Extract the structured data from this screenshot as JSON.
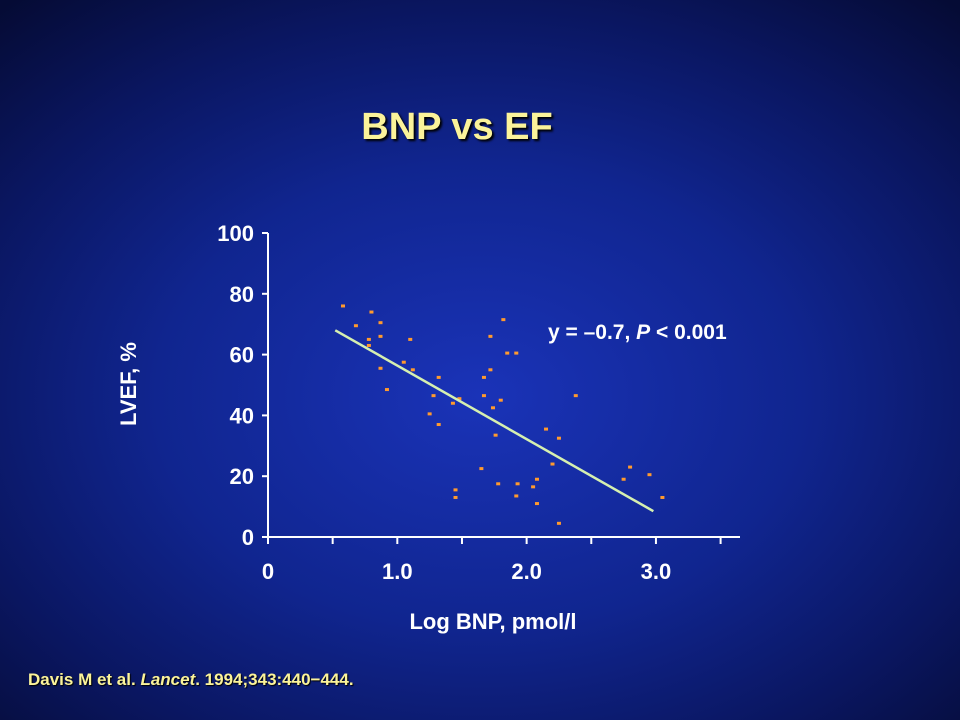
{
  "slide": {
    "title": "BNP vs EF"
  },
  "citation": {
    "authors": "Davis M et al. ",
    "journal": "Lancet",
    "details": ". 1994;343:440−444."
  },
  "colors": {
    "title_text": "#fbf39a",
    "axis": "#ffffff",
    "points": "#ff9a2e",
    "regression_line": "#d6f0b0"
  },
  "chart_data": {
    "type": "scatter",
    "title": "",
    "xlabel": "Log BNP, pmol/l",
    "ylabel": "LVEF, %",
    "xlim": [
      0,
      3.65
    ],
    "ylim": [
      0,
      100
    ],
    "x_ticks": [
      0,
      1.0,
      2.0,
      3.0
    ],
    "x_tick_labels": [
      "0",
      "1.0",
      "2.0",
      "3.0"
    ],
    "x_minor_ticks": [
      0.5,
      1.5,
      2.5,
      3.5
    ],
    "y_ticks": [
      0,
      20,
      40,
      60,
      80,
      100
    ],
    "y_tick_labels": [
      "0",
      "20",
      "40",
      "60",
      "80",
      "100"
    ],
    "grid": false,
    "annotation": {
      "prefix": "y = –0.7, ",
      "p_symbol": "P",
      "suffix": " < 0.001"
    },
    "regression": {
      "x": [
        0.52,
        2.98
      ],
      "y": [
        68,
        8.5
      ]
    },
    "series": [
      {
        "points": [
          [
            0.58,
            76
          ],
          [
            0.68,
            69.5
          ],
          [
            0.78,
            65
          ],
          [
            0.78,
            63
          ],
          [
            0.8,
            74
          ],
          [
            0.87,
            70.5
          ],
          [
            0.87,
            66
          ],
          [
            0.87,
            55.5
          ],
          [
            0.92,
            48.5
          ],
          [
            1.05,
            57.5
          ],
          [
            1.1,
            65
          ],
          [
            1.12,
            55
          ],
          [
            1.25,
            40.5
          ],
          [
            1.28,
            46.5
          ],
          [
            1.32,
            37
          ],
          [
            1.32,
            52.5
          ],
          [
            1.43,
            44
          ],
          [
            1.45,
            15.5
          ],
          [
            1.45,
            13
          ],
          [
            1.48,
            45.5
          ],
          [
            1.65,
            22.5
          ],
          [
            1.67,
            52.5
          ],
          [
            1.67,
            46.5
          ],
          [
            1.72,
            55
          ],
          [
            1.72,
            66
          ],
          [
            1.74,
            42.5
          ],
          [
            1.76,
            33.5
          ],
          [
            1.78,
            17.5
          ],
          [
            1.8,
            45
          ],
          [
            1.82,
            71.5
          ],
          [
            1.85,
            60.5
          ],
          [
            1.92,
            60.5
          ],
          [
            1.92,
            13.5
          ],
          [
            1.93,
            17.5
          ],
          [
            2.05,
            16.5
          ],
          [
            2.08,
            19
          ],
          [
            2.08,
            11
          ],
          [
            2.15,
            35.5
          ],
          [
            2.2,
            24
          ],
          [
            2.25,
            32.5
          ],
          [
            2.25,
            4.5
          ],
          [
            2.38,
            46.5
          ],
          [
            2.75,
            19
          ],
          [
            2.8,
            23
          ],
          [
            2.95,
            20.5
          ],
          [
            3.05,
            13
          ]
        ]
      }
    ]
  }
}
